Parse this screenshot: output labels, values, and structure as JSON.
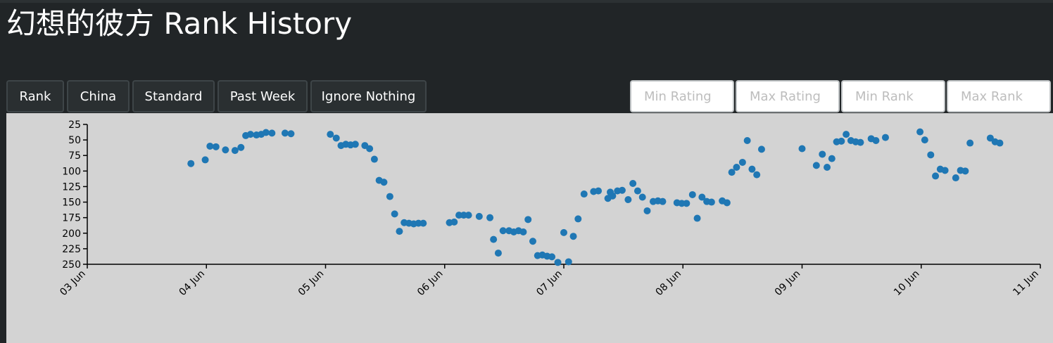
{
  "header": {
    "title": "幻想的彼方 Rank History"
  },
  "controls": {
    "buttons": [
      "Rank",
      "China",
      "Standard",
      "Past Week",
      "Ignore Nothing"
    ],
    "inputs": [
      "Min Rating",
      "Max Rating",
      "Min Rank",
      "Max Rank"
    ]
  },
  "chart_data": {
    "type": "scatter",
    "title": "",
    "xlabel": "",
    "ylabel": "",
    "y_reversed": true,
    "ylim": [
      250,
      25
    ],
    "y_ticks": [
      25,
      50,
      75,
      100,
      125,
      150,
      175,
      200,
      225,
      250
    ],
    "x_range": [
      "03 Jun",
      "11 Jun"
    ],
    "x_ticks": [
      "03 Jun",
      "04 Jun",
      "05 Jun",
      "06 Jun",
      "07 Jun",
      "08 Jun",
      "09 Jun",
      "10 Jun",
      "11 Jun"
    ],
    "color": "#1f77b4",
    "points": [
      [
        3.87,
        88
      ],
      [
        3.99,
        82
      ],
      [
        4.03,
        60
      ],
      [
        4.08,
        61
      ],
      [
        4.16,
        66
      ],
      [
        4.24,
        67
      ],
      [
        4.29,
        62
      ],
      [
        4.33,
        43
      ],
      [
        4.37,
        41
      ],
      [
        4.42,
        42
      ],
      [
        4.46,
        41
      ],
      [
        4.5,
        38
      ],
      [
        4.55,
        39
      ],
      [
        4.66,
        39
      ],
      [
        4.71,
        40
      ],
      [
        5.04,
        41
      ],
      [
        5.09,
        47
      ],
      [
        5.13,
        59
      ],
      [
        5.17,
        57
      ],
      [
        5.21,
        58
      ],
      [
        5.25,
        57
      ],
      [
        5.33,
        59
      ],
      [
        5.37,
        64
      ],
      [
        5.41,
        81
      ],
      [
        5.45,
        115
      ],
      [
        5.49,
        118
      ],
      [
        5.54,
        141
      ],
      [
        5.58,
        169
      ],
      [
        5.62,
        197
      ],
      [
        5.66,
        183
      ],
      [
        5.7,
        184
      ],
      [
        5.74,
        185
      ],
      [
        5.78,
        184
      ],
      [
        5.82,
        184
      ],
      [
        6.04,
        183
      ],
      [
        6.08,
        182
      ],
      [
        6.12,
        171
      ],
      [
        6.16,
        171
      ],
      [
        6.2,
        171
      ],
      [
        6.29,
        173
      ],
      [
        6.38,
        175
      ],
      [
        6.41,
        210
      ],
      [
        6.45,
        232
      ],
      [
        6.49,
        196
      ],
      [
        6.54,
        196
      ],
      [
        6.58,
        198
      ],
      [
        6.62,
        196
      ],
      [
        6.66,
        198
      ],
      [
        6.7,
        178
      ],
      [
        6.74,
        213
      ],
      [
        6.78,
        236
      ],
      [
        6.82,
        235
      ],
      [
        6.86,
        237
      ],
      [
        6.9,
        238
      ],
      [
        6.95,
        247
      ],
      [
        7.0,
        199
      ],
      [
        7.04,
        246
      ],
      [
        7.08,
        205
      ],
      [
        7.12,
        177
      ],
      [
        7.17,
        137
      ],
      [
        7.25,
        133
      ],
      [
        7.29,
        132
      ],
      [
        7.37,
        144
      ],
      [
        7.39,
        134
      ],
      [
        7.41,
        140
      ],
      [
        7.45,
        132
      ],
      [
        7.49,
        131
      ],
      [
        7.54,
        146
      ],
      [
        7.58,
        120
      ],
      [
        7.62,
        132
      ],
      [
        7.66,
        142
      ],
      [
        7.7,
        164
      ],
      [
        7.75,
        149
      ],
      [
        7.79,
        148
      ],
      [
        7.83,
        149
      ],
      [
        7.95,
        151
      ],
      [
        7.99,
        152
      ],
      [
        8.03,
        152
      ],
      [
        8.08,
        138
      ],
      [
        8.12,
        176
      ],
      [
        8.16,
        142
      ],
      [
        8.2,
        149
      ],
      [
        8.24,
        150
      ],
      [
        8.33,
        148
      ],
      [
        8.37,
        151
      ],
      [
        8.41,
        102
      ],
      [
        8.45,
        94
      ],
      [
        8.5,
        86
      ],
      [
        8.54,
        51
      ],
      [
        8.58,
        97
      ],
      [
        8.62,
        106
      ],
      [
        8.66,
        65
      ],
      [
        9.0,
        64
      ],
      [
        9.12,
        91
      ],
      [
        9.17,
        73
      ],
      [
        9.21,
        94
      ],
      [
        9.25,
        80
      ],
      [
        9.29,
        53
      ],
      [
        9.33,
        52
      ],
      [
        9.37,
        41
      ],
      [
        9.41,
        51
      ],
      [
        9.45,
        53
      ],
      [
        9.49,
        54
      ],
      [
        9.58,
        48
      ],
      [
        9.62,
        51
      ],
      [
        9.7,
        46
      ],
      [
        9.99,
        37
      ],
      [
        10.03,
        50
      ],
      [
        10.08,
        74
      ],
      [
        10.12,
        108
      ],
      [
        10.16,
        97
      ],
      [
        10.2,
        99
      ],
      [
        10.29,
        111
      ],
      [
        10.33,
        99
      ],
      [
        10.37,
        100
      ],
      [
        10.41,
        55
      ],
      [
        10.58,
        47
      ],
      [
        10.62,
        53
      ],
      [
        10.66,
        55
      ]
    ]
  }
}
